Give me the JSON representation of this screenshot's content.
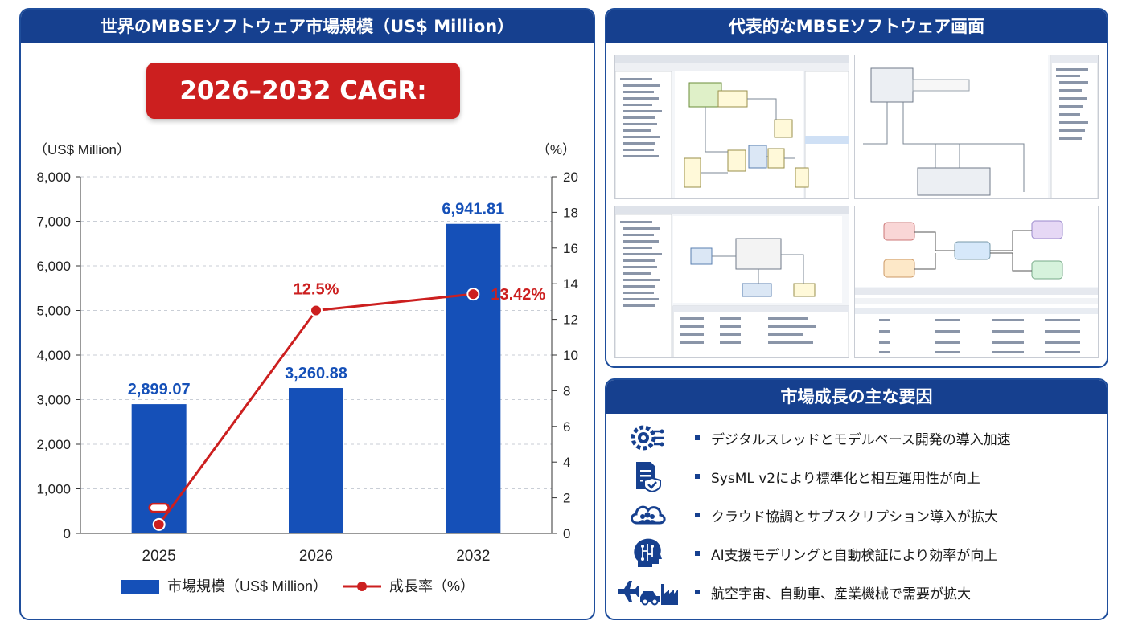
{
  "left_panel": {
    "title": "世界のMBSEソフトウェア市場規模（US$ Million）"
  },
  "cagr_label": "2026–2032 CAGR: 13.42%",
  "right_top": {
    "title": "代表的なMBSEソフトウェア画面"
  },
  "right_bottom": {
    "title": "市場成長の主な要因",
    "factors": [
      {
        "icon": "gear-circuit-icon",
        "text": "デジタルスレッドとモデルベース開発の導入加速"
      },
      {
        "icon": "document-shield-icon",
        "text": "SysML v2により標準化と相互運用性が向上"
      },
      {
        "icon": "cloud-people-icon",
        "text": "クラウド協調とサブスクリプション導入が拡大"
      },
      {
        "icon": "ai-head-icon",
        "text": "AI支援モデリングと自動検証により効率が向上"
      },
      {
        "icon": "plane-car-factory-icon",
        "text": "航空宇宙、自動車、産業機械で需要が拡大"
      }
    ]
  },
  "colors": {
    "bar": "#1550b8",
    "line": "#cc1f1f",
    "header": "#16408f"
  },
  "chart_data": {
    "type": "bar",
    "categories": [
      "2025",
      "2026",
      "2032"
    ],
    "series": [
      {
        "name": "市場規模（US$ Million）",
        "type": "bar",
        "axis": "left",
        "values": [
          2899.07,
          3260.88,
          6941.81
        ],
        "labels": [
          "2,899.07",
          "3,260.88",
          "6,941.81"
        ]
      },
      {
        "name": "成長率（%）",
        "type": "line",
        "axis": "right",
        "values": [
          0.5,
          12.5,
          13.42
        ],
        "labels": [
          "",
          "12.5%",
          "13.42%"
        ]
      }
    ],
    "yleft": {
      "unit": "（US$ Million）",
      "ylim": [
        0,
        8000
      ],
      "ticks": [
        "0",
        "1,000",
        "2,000",
        "3,000",
        "4,000",
        "5,000",
        "6,000",
        "7,000",
        "8,000"
      ]
    },
    "yright": {
      "unit": "（%）",
      "ylim": [
        0,
        20
      ],
      "ticks": [
        "0",
        "2",
        "4",
        "6",
        "8",
        "10",
        "12",
        "14",
        "16",
        "18",
        "20"
      ]
    },
    "grid": true,
    "legend_position": "bottom"
  }
}
